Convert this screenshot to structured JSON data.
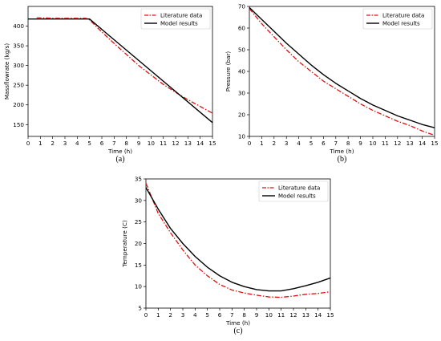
{
  "chart_data": [
    {
      "type": "line",
      "caption": "(a)",
      "xlabel": "Time (h)",
      "ylabel": "Massflowrate (kg/s)",
      "xlim": [
        0,
        15
      ],
      "ylim": [
        120,
        450
      ],
      "xticks": [
        0,
        1,
        2,
        3,
        4,
        5,
        6,
        7,
        8,
        9,
        10,
        11,
        12,
        13,
        14,
        15
      ],
      "yticks": [
        150,
        200,
        250,
        300,
        350,
        400
      ],
      "grid": false,
      "legend_position": "top-right",
      "series": [
        {
          "name": "Literature data",
          "style": "dashdot",
          "color": "#e01010",
          "x": [
            0.7,
            1,
            2,
            3,
            4,
            4.7,
            5,
            6,
            7,
            8,
            9,
            10,
            11,
            12,
            13,
            14,
            15
          ],
          "y": [
            421,
            421,
            420,
            420,
            420,
            420,
            416,
            385,
            356,
            328,
            300,
            276,
            252,
            232,
            213,
            196,
            179
          ]
        },
        {
          "name": "Model results",
          "style": "solid",
          "color": "#000000",
          "x": [
            0,
            5,
            15
          ],
          "y": [
            418,
            418,
            155
          ]
        }
      ]
    },
    {
      "type": "line",
      "caption": "(b)",
      "xlabel": "Time (h)",
      "ylabel": "Pressure (bar)",
      "xlim": [
        0,
        15
      ],
      "ylim": [
        10,
        70
      ],
      "xticks": [
        0,
        1,
        2,
        3,
        4,
        5,
        6,
        7,
        8,
        9,
        10,
        11,
        12,
        13,
        14,
        15
      ],
      "yticks": [
        10,
        20,
        30,
        40,
        50,
        60,
        70
      ],
      "grid": false,
      "legend_position": "top-right",
      "series": [
        {
          "name": "Literature data",
          "style": "dashdot",
          "color": "#e01010",
          "x": [
            0,
            1,
            2,
            3,
            4,
            5,
            6,
            7,
            8,
            9,
            10,
            11,
            12,
            13,
            14,
            15
          ],
          "y": [
            69,
            62,
            56,
            50,
            44.5,
            40,
            35.5,
            32,
            28.5,
            25,
            22,
            19.5,
            17,
            15,
            12.5,
            10.5
          ]
        },
        {
          "name": "Model results",
          "style": "solid",
          "color": "#000000",
          "x": [
            0,
            1,
            2,
            3,
            4,
            5,
            6,
            7,
            8,
            9,
            10,
            11,
            12,
            13,
            14,
            15
          ],
          "y": [
            69.5,
            64,
            58.5,
            53,
            48,
            43,
            38.5,
            34.5,
            31,
            27.5,
            24.5,
            22,
            19.5,
            17.5,
            15.5,
            14
          ]
        }
      ]
    },
    {
      "type": "line",
      "caption": "(c)",
      "xlabel": "Time (h)",
      "ylabel": "Temperature (C)",
      "xlim": [
        0,
        15
      ],
      "ylim": [
        5,
        35
      ],
      "xticks": [
        0,
        1,
        2,
        3,
        4,
        5,
        6,
        7,
        8,
        9,
        10,
        11,
        12,
        13,
        14,
        15
      ],
      "yticks": [
        5,
        10,
        15,
        20,
        25,
        30,
        35
      ],
      "grid": false,
      "legend_position": "top-right",
      "series": [
        {
          "name": "Literature data",
          "style": "dashdot",
          "color": "#e01010",
          "x": [
            0,
            1,
            2,
            3,
            4,
            5,
            6,
            7,
            8,
            9,
            10,
            11,
            12,
            13,
            14,
            15
          ],
          "y": [
            34,
            27,
            22.5,
            18.5,
            15,
            12.5,
            10.5,
            9.2,
            8.5,
            8,
            7.6,
            7.5,
            7.8,
            8.2,
            8.4,
            8.8
          ]
        },
        {
          "name": "Model results",
          "style": "solid",
          "color": "#000000",
          "x": [
            0,
            1,
            2,
            3,
            4,
            5,
            6,
            7,
            8,
            9,
            10,
            11,
            12,
            13,
            14,
            15
          ],
          "y": [
            33,
            28,
            23.5,
            20,
            17,
            14.5,
            12.5,
            11,
            10,
            9.3,
            9,
            9,
            9.5,
            10.2,
            11,
            12
          ]
        }
      ]
    }
  ]
}
